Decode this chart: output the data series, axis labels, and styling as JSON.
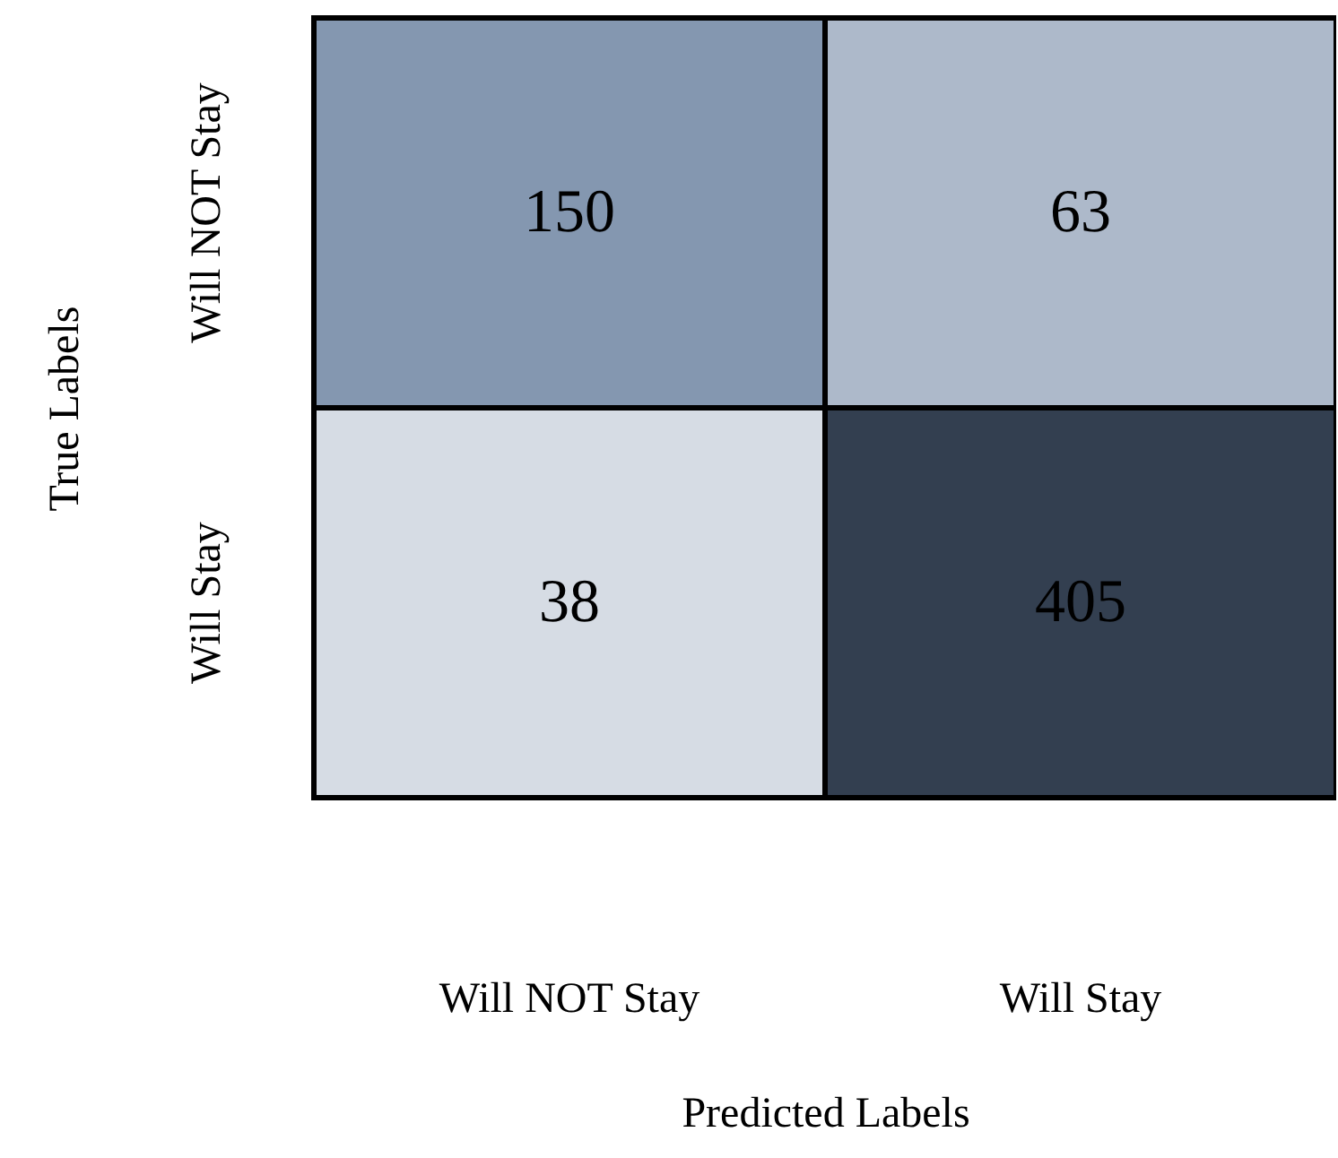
{
  "chart_data": {
    "type": "heatmap",
    "xlabel": "Predicted Labels",
    "ylabel": "True Labels",
    "categories": [
      "Will NOT Stay",
      "Will Stay"
    ],
    "y_categories": [
      "Will NOT Stay",
      "Will Stay"
    ],
    "cells": [
      [
        150,
        63
      ],
      [
        38,
        405
      ]
    ],
    "colors": [
      "#8497b0",
      "#adb9ca",
      "#d6dce4",
      "#333f50"
    ],
    "data_labels": true
  }
}
